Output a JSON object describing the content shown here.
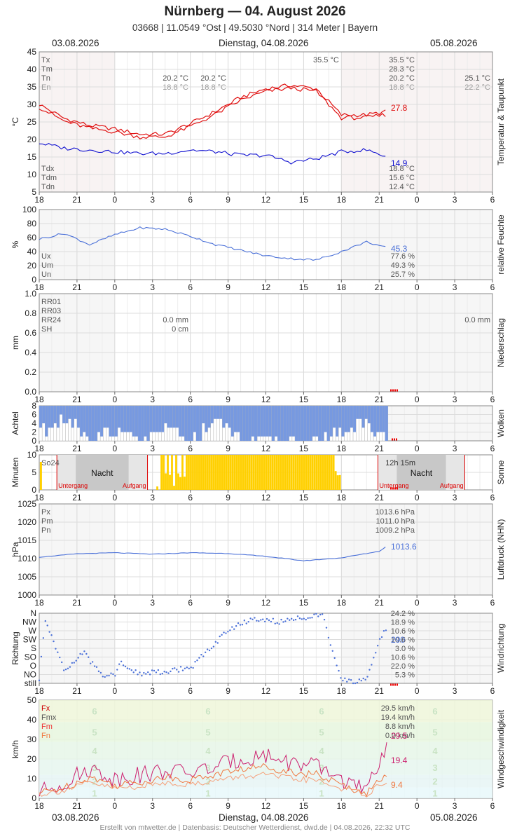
{
  "header": {
    "title": "Nürnberg  —  04. August 2026",
    "subtitle": "03668  |  11.0549 °Ost  |  49.5030 °Nord  |  314 Meter  |  Bayern",
    "date_left": "03.08.2026",
    "date_center": "Dienstag, 04.08.2026",
    "date_right": "05.08.2026"
  },
  "footer": "Erstellt von mtwetter.de | Datenbasis: Deutscher Wetterdienst, dwd.de | 04.08.2026, 22:32 UTC",
  "x_axis": {
    "ticks": [
      "18",
      "21",
      "0",
      "3",
      "6",
      "9",
      "12",
      "15",
      "18",
      "21",
      "0",
      "3",
      "6"
    ]
  },
  "colors": {
    "temp": "#e01010",
    "dew": "#1010d0",
    "humidity": "#4a70d8",
    "clouds": "#7799e0",
    "sun": "#ffd000",
    "night": "#c8c8c8",
    "gust": "#cc1f6e",
    "mean_wind": "#f07840"
  },
  "chart_data": [
    {
      "id": "temperature",
      "type": "line",
      "ylabel": "°C",
      "side_label": "Temperatur & Taupunkt",
      "yticks": [
        "45",
        "40",
        "35",
        "30",
        "25",
        "20",
        "15",
        "10",
        "5"
      ],
      "ylim": [
        5,
        45
      ],
      "series": [
        {
          "name": "Temperatur",
          "current": "27.8"
        },
        {
          "name": "Taupunkt",
          "current": "14.9"
        }
      ],
      "x_hours": [
        -6,
        -4,
        -2,
        0,
        2,
        4,
        6,
        8,
        10,
        12,
        14,
        16,
        18,
        20,
        21.7
      ],
      "temp_values": [
        30,
        26,
        24,
        23,
        21.5,
        21.5,
        24.5,
        28,
        32,
        34.5,
        35.5,
        34.5,
        27,
        27,
        28
      ],
      "dew_values": [
        19,
        17.5,
        17,
        16.5,
        16,
        16,
        17,
        16.5,
        15.5,
        15.5,
        13.5,
        14.5,
        16.5,
        17,
        15
      ],
      "labels_top": {
        "Tx": "Tx",
        "Tm": "Tm",
        "Tn": "Tn",
        "En": "En",
        "tx_peak": "35.5 °C",
        "tn1": "20.2 °C",
        "en1": "18.8 °C",
        "tn2": "20.2 °C",
        "en2": "18.8 °C",
        "tx_val": "35.5 °C",
        "tm_val": "28.3 °C",
        "tn_val": "20.2 °C",
        "en_val": "18.8 °C",
        "next_tn": "25.1 °C",
        "next_en": "22.2 °C"
      },
      "labels_bottom": {
        "Tdx": "Tdx",
        "Tdm": "Tdm",
        "Tdn": "Tdn",
        "tdx_val": "18.8 °C",
        "tdm_val": "15.6 °C",
        "tdn_val": "12.4 °C"
      }
    },
    {
      "id": "humidity",
      "type": "line",
      "ylabel": "%",
      "side_label": "relative Feuchte",
      "yticks": [
        "100",
        "80",
        "60",
        "40",
        "20",
        "0"
      ],
      "ylim": [
        0,
        100
      ],
      "current": "45.3",
      "x_hours": [
        -6,
        -4,
        -2,
        0,
        2,
        4,
        6,
        8,
        10,
        12,
        14,
        16,
        18,
        20,
        21.7
      ],
      "values": [
        58,
        66,
        50,
        64,
        74,
        72,
        62,
        50,
        42,
        34,
        30,
        28,
        40,
        54,
        45
      ],
      "labels": {
        "Ux": "Ux",
        "Um": "Um",
        "Un": "Un",
        "ux_val": "77.6 %",
        "um_val": "49.3 %",
        "un_val": "25.7 %"
      }
    },
    {
      "id": "precipitation",
      "type": "bar",
      "ylabel": "mm",
      "side_label": "Niederschlag",
      "yticks": [
        "1.0",
        "0.8",
        "0.6",
        "0.4",
        "0.2",
        "0.0"
      ],
      "ylim": [
        0,
        1
      ],
      "labels": {
        "RR01": "RR01",
        "RR03": "RR03",
        "RR24": "RR24",
        "SH": "SH",
        "rr24_val": "0.0 mm",
        "sh_val": "0 cm",
        "next_rr24": "0.0 mm"
      }
    },
    {
      "id": "clouds",
      "type": "bar",
      "ylabel": "Achtel",
      "side_label": "Wolken",
      "yticks": [
        "8",
        "6",
        "4",
        "2",
        "0"
      ],
      "ylim": [
        0,
        8
      ],
      "x_hours": [
        -6,
        -4,
        -2,
        0,
        2,
        4,
        6,
        8,
        10,
        12,
        14,
        16,
        18,
        20,
        21.7
      ],
      "values": [
        6,
        3,
        7,
        6,
        8,
        5,
        8,
        3,
        8,
        8,
        8,
        8,
        6,
        4,
        8
      ]
    },
    {
      "id": "sunshine",
      "type": "bar",
      "ylabel": "Minuten",
      "side_label": "Sonne",
      "yticks": [
        "10",
        "5",
        "0"
      ],
      "ylim": [
        0,
        10
      ],
      "labels": {
        "so24": "So24",
        "night": "Nacht",
        "sunset": "Untergang",
        "sunrise": "Aufgang",
        "daylength": "12h 15m"
      }
    },
    {
      "id": "pressure",
      "type": "line",
      "ylabel": "hPa",
      "side_label": "Luftdruck (NHN)",
      "yticks": [
        "1025",
        "1020",
        "1015",
        "1010",
        "1005",
        "1000"
      ],
      "ylim": [
        1000,
        1025
      ],
      "current": "1013.6",
      "x_hours": [
        -6,
        -3,
        0,
        3,
        6,
        9,
        12,
        15,
        18,
        21,
        21.7
      ],
      "values": [
        1010.4,
        1011.3,
        1011.6,
        1011.2,
        1011.6,
        1011.4,
        1010.6,
        1009.4,
        1010.2,
        1012,
        1013.6
      ],
      "labels": {
        "Px": "Px",
        "Pm": "Pm",
        "Pn": "Pn",
        "px_val": "1013.6 hPa",
        "pm_val": "1011.0 hPa",
        "pn_val": "1009.2 hPa"
      }
    },
    {
      "id": "wind_direction",
      "type": "scatter",
      "ylabel": "Richtung",
      "side_label": "Windrichtung",
      "yticks": [
        "N",
        "NW",
        "W",
        "SW",
        "S",
        "SO",
        "O",
        "NO",
        "still"
      ],
      "percentages": [
        "24.2 %",
        "18.9 %",
        "10.6 %",
        "10.6 %",
        "3.0 %",
        "10.6 %",
        "22.0 %",
        "5.3 %"
      ],
      "current": "290"
    },
    {
      "id": "wind_speed",
      "type": "line",
      "ylabel": "km/h",
      "side_label": "Windgeschwindigkeit",
      "yticks": [
        "50",
        "40",
        "30",
        "20",
        "10",
        "0"
      ],
      "ylim": [
        0,
        50
      ],
      "x_hours": [
        -6,
        -4,
        -2,
        0,
        2,
        4,
        6,
        8,
        10,
        12,
        14,
        16,
        18,
        20,
        21.7
      ],
      "gust_values": [
        3,
        8,
        15,
        10,
        12,
        14,
        13,
        16,
        20,
        22,
        18,
        16,
        10,
        3,
        29.5
      ],
      "mean_values": [
        2,
        4,
        8,
        5,
        6,
        8,
        7,
        9,
        11,
        12,
        10,
        9,
        5,
        2,
        9.4
      ],
      "labels": {
        "Fx": "Fx",
        "Fmx": "Fmx",
        "Fm": "Fm",
        "Fn": "Fn",
        "fx_val": "29.5 km/h",
        "fmx_val": "19.4 km/h",
        "fm_val": "8.8 km/h",
        "fn_val": "0.0 km/h",
        "cur_gust": "29.5",
        "cur_mean": "19.4",
        "cur_low": "9.4"
      },
      "beaufort": [
        "6",
        "5",
        "4",
        "3",
        "2",
        "1"
      ]
    }
  ]
}
